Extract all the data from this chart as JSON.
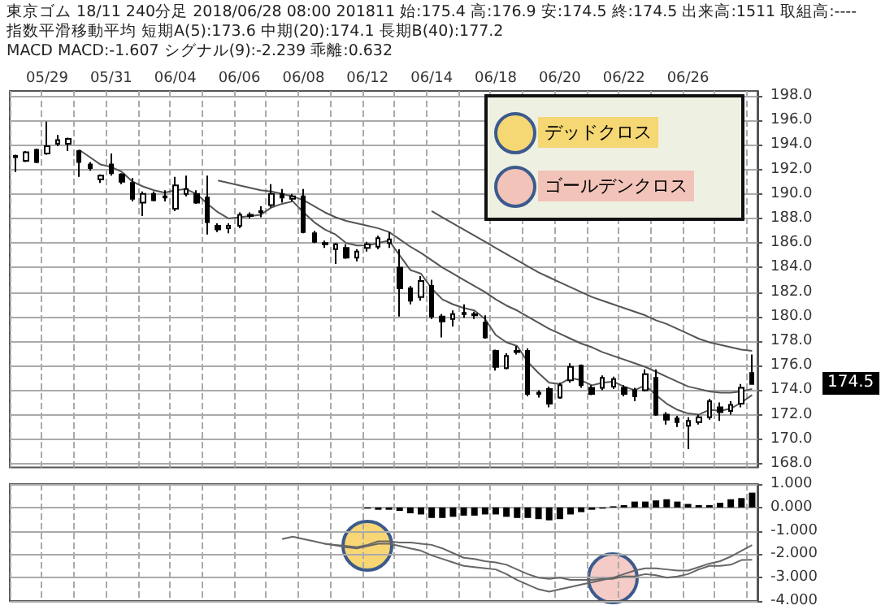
{
  "chart_data": [
    {
      "type": "candlestick",
      "title": "東京ゴム 18/11 240分足 2018/06/28 08:00 201811 始:175.4 高:176.9 安:174.5 終:174.5 出来高:1511 取組高:----",
      "subtitle": "指数平滑移動平均 短期A(5):173.6 中期(20):174.1 長期B(40):177.2",
      "categories": [
        null,
        null,
        null,
        "05/29",
        null,
        null,
        null,
        null,
        null,
        "05/31",
        null,
        null,
        null,
        null,
        null,
        "06/04",
        null,
        null,
        null,
        null,
        null,
        "06/06",
        null,
        null,
        null,
        null,
        null,
        "06/08",
        null,
        null,
        null,
        null,
        null,
        "06/12",
        null,
        null,
        null,
        null,
        null,
        "06/14",
        null,
        null,
        null,
        null,
        null,
        "06/18",
        null,
        null,
        null,
        null,
        null,
        "06/20",
        null,
        null,
        null,
        null,
        null,
        "06/22",
        null,
        null,
        null,
        null,
        null,
        "06/26",
        null,
        null,
        null,
        null,
        null,
        null
      ],
      "ohlc": [
        [
          193.1,
          193.2,
          191.8,
          193.0
        ],
        [
          192.7,
          193.5,
          192.6,
          193.4
        ],
        [
          193.6,
          193.7,
          192.5,
          192.6
        ],
        [
          193.3,
          195.9,
          193.2,
          193.9
        ],
        [
          194.1,
          194.8,
          193.9,
          194.4
        ],
        [
          194.1,
          194.6,
          193.5,
          194.5
        ],
        [
          193.5,
          193.6,
          191.4,
          192.6
        ],
        [
          192.4,
          192.6,
          191.9,
          192.1
        ],
        [
          191.2,
          191.6,
          190.9,
          191.5
        ],
        [
          192.4,
          193.3,
          191.5,
          191.7
        ],
        [
          191.6,
          191.7,
          190.8,
          191.0
        ],
        [
          190.9,
          191.3,
          189.4,
          189.6
        ],
        [
          189.3,
          190.2,
          188.2,
          190.0
        ],
        [
          190.0,
          190.2,
          189.4,
          189.5
        ],
        [
          189.8,
          190.3,
          189.4,
          189.7
        ],
        [
          188.8,
          191.4,
          188.6,
          190.7
        ],
        [
          190.0,
          191.5,
          189.8,
          190.4
        ],
        [
          190.0,
          190.3,
          189.2,
          189.3
        ],
        [
          189.7,
          191.5,
          186.7,
          187.7
        ],
        [
          187.4,
          187.6,
          186.9,
          187.1
        ],
        [
          187.2,
          187.6,
          186.8,
          187.4
        ],
        [
          187.4,
          188.5,
          187.2,
          188.3
        ],
        [
          188.3,
          188.5,
          188.0,
          188.2
        ],
        [
          188.6,
          189.0,
          188.1,
          188.5
        ],
        [
          189.1,
          190.8,
          188.9,
          190.0
        ],
        [
          190.0,
          190.4,
          189.3,
          189.7
        ],
        [
          189.6,
          190.0,
          189.4,
          189.8
        ],
        [
          189.8,
          190.4,
          186.8,
          186.9
        ],
        [
          186.8,
          187.0,
          186.0,
          186.1
        ],
        [
          186.0,
          186.2,
          185.6,
          185.9
        ],
        [
          185.5,
          186.0,
          184.3,
          185.9
        ],
        [
          185.6,
          185.9,
          184.7,
          184.8
        ],
        [
          184.8,
          185.5,
          184.5,
          185.3
        ],
        [
          185.6,
          186.1,
          185.3,
          185.9
        ],
        [
          185.7,
          186.6,
          185.5,
          186.4
        ],
        [
          186.0,
          186.9,
          185.6,
          186.3
        ],
        [
          184.0,
          185.5,
          180.0,
          182.3
        ],
        [
          182.3,
          182.5,
          181.0,
          181.3
        ],
        [
          181.6,
          183.3,
          181.3,
          182.9
        ],
        [
          182.5,
          183.0,
          179.8,
          180.0
        ],
        [
          180.0,
          180.2,
          178.3,
          179.6
        ],
        [
          179.8,
          180.5,
          179.2,
          180.2
        ],
        [
          180.3,
          181.0,
          179.9,
          180.2
        ],
        [
          180.2,
          180.4,
          179.8,
          180.1
        ],
        [
          179.5,
          180.1,
          178.2,
          178.3
        ],
        [
          177.2,
          177.3,
          175.6,
          175.9
        ],
        [
          175.8,
          177.0,
          175.7,
          176.8
        ],
        [
          177.2,
          177.6,
          176.9,
          177.1
        ],
        [
          177.2,
          177.4,
          173.5,
          173.7
        ],
        [
          173.8,
          174.0,
          173.4,
          173.7
        ],
        [
          174.1,
          174.3,
          172.6,
          172.9
        ],
        [
          173.4,
          174.6,
          173.3,
          174.4
        ],
        [
          174.8,
          176.2,
          174.6,
          175.9
        ],
        [
          176.0,
          176.1,
          174.2,
          174.4
        ],
        [
          174.2,
          174.4,
          173.6,
          173.7
        ],
        [
          174.2,
          175.2,
          174.0,
          175.0
        ],
        [
          174.3,
          175.1,
          174.1,
          174.9
        ],
        [
          174.2,
          174.4,
          173.5,
          173.7
        ],
        [
          174.0,
          174.2,
          173.1,
          173.5
        ],
        [
          174.0,
          175.7,
          173.9,
          175.3
        ],
        [
          175.0,
          175.7,
          171.9,
          172.0
        ],
        [
          172.0,
          172.2,
          171.2,
          171.6
        ],
        [
          171.7,
          171.9,
          171.0,
          171.4
        ],
        [
          171.1,
          171.8,
          169.2,
          171.5
        ],
        [
          171.4,
          172.0,
          171.2,
          171.8
        ],
        [
          171.8,
          173.3,
          171.6,
          173.1
        ],
        [
          172.6,
          173.0,
          171.5,
          172.2
        ],
        [
          172.3,
          173.1,
          172.0,
          172.8
        ],
        [
          172.9,
          174.5,
          172.6,
          174.2
        ],
        [
          175.4,
          176.9,
          174.5,
          174.5
        ]
      ],
      "series": [
        {
          "type": "line",
          "color": "#555555",
          "values": [
            null,
            null,
            null,
            null,
            null,
            null,
            193.6,
            193.0,
            192.4,
            192.2,
            191.8,
            191.0,
            190.6,
            190.3,
            190.1,
            190.3,
            190.4,
            190.0,
            189.2,
            188.5,
            188.0,
            188.1,
            188.2,
            188.3,
            188.9,
            189.2,
            189.4,
            188.5,
            187.7,
            187.1,
            186.7,
            186.0,
            185.8,
            185.8,
            186.0,
            186.2,
            185.0,
            183.8,
            183.5,
            182.3,
            181.4,
            181.0,
            180.7,
            180.5,
            179.8,
            178.5,
            177.9,
            177.6,
            176.3,
            175.4,
            174.6,
            174.5,
            175.0,
            174.8,
            174.4,
            174.6,
            174.7,
            174.3,
            174.0,
            174.4,
            173.6,
            172.9,
            172.4,
            172.1,
            172.0,
            172.4,
            172.3,
            172.5,
            173.0,
            173.6
          ]
        },
        {
          "type": "line",
          "color": "#555555",
          "values": [
            null,
            null,
            null,
            null,
            null,
            null,
            null,
            null,
            null,
            null,
            null,
            null,
            null,
            null,
            null,
            null,
            null,
            null,
            null,
            191.1,
            190.9,
            190.7,
            190.5,
            190.3,
            190.2,
            190.0,
            189.8,
            189.5,
            189.0,
            188.5,
            188.1,
            187.8,
            187.6,
            187.4,
            187.2,
            186.9,
            186.3,
            185.7,
            185.2,
            184.6,
            184.0,
            183.5,
            183.0,
            182.5,
            182.0,
            181.4,
            180.9,
            180.5,
            180.0,
            179.5,
            179.0,
            178.6,
            178.2,
            177.8,
            177.5,
            177.1,
            176.8,
            176.5,
            176.2,
            175.9,
            175.5,
            175.1,
            174.7,
            174.3,
            174.1,
            173.9,
            173.8,
            173.8,
            173.9,
            174.1
          ]
        },
        {
          "type": "line",
          "color": "#555555",
          "values": [
            null,
            null,
            null,
            null,
            null,
            null,
            null,
            null,
            null,
            null,
            null,
            null,
            null,
            null,
            null,
            null,
            null,
            null,
            null,
            null,
            null,
            null,
            null,
            null,
            null,
            null,
            null,
            null,
            null,
            null,
            null,
            null,
            null,
            null,
            null,
            null,
            null,
            null,
            null,
            188.6,
            188.1,
            187.6,
            187.1,
            186.6,
            186.1,
            185.6,
            185.1,
            184.6,
            184.1,
            183.6,
            183.2,
            182.8,
            182.4,
            182.0,
            181.6,
            181.3,
            181.0,
            180.7,
            180.4,
            180.1,
            179.7,
            179.4,
            179.0,
            178.6,
            178.2,
            177.9,
            177.7,
            177.5,
            177.3,
            177.2
          ]
        }
      ],
      "ylim": [
        167.7,
        198.4
      ],
      "yticks": [
        {
          "value": 168,
          "label": "168.0"
        },
        {
          "value": 170,
          "label": "170.0"
        },
        {
          "value": 172,
          "label": "172.0"
        },
        {
          "value": 174,
          "label": "174.0"
        },
        {
          "value": 176,
          "label": "176.0"
        },
        {
          "value": 178,
          "label": "178.0"
        },
        {
          "value": 180,
          "label": "180.0"
        },
        {
          "value": 182,
          "label": "182.0"
        },
        {
          "value": 184,
          "label": "184.0"
        },
        {
          "value": 186,
          "label": "186.0"
        },
        {
          "value": 188,
          "label": "188.0"
        },
        {
          "value": 190,
          "label": "190.0"
        },
        {
          "value": 192,
          "label": "192.0"
        },
        {
          "value": 194,
          "label": "194.0"
        },
        {
          "value": 196,
          "label": "196.0"
        },
        {
          "value": 198,
          "label": "198.0"
        }
      ],
      "grid": true,
      "annotations": [
        "MACD MACD:-1.607 シグナル(9):-2.239 乖離:0.632",
        "174.5"
      ]
    },
    {
      "type": "bar",
      "categories": [
        null,
        null,
        null,
        null,
        null,
        null,
        null,
        null,
        null,
        null,
        null,
        null,
        null,
        null,
        null,
        null,
        null,
        null,
        null,
        null,
        null,
        null,
        null,
        null,
        null,
        null,
        null,
        null,
        null,
        null,
        null,
        null,
        null,
        null,
        null,
        null,
        null,
        null,
        null,
        null,
        null,
        null,
        null,
        null,
        null,
        null,
        null,
        null,
        null,
        null,
        null,
        null,
        null,
        null,
        null,
        null,
        null,
        null,
        null,
        null,
        null,
        null,
        null,
        null,
        null,
        null,
        null,
        null,
        null,
        null
      ],
      "series": [
        {
          "type": "bar",
          "color": "#000000",
          "values": [
            null,
            null,
            null,
            null,
            null,
            null,
            null,
            null,
            null,
            null,
            null,
            null,
            null,
            null,
            null,
            null,
            null,
            null,
            null,
            null,
            null,
            null,
            null,
            null,
            null,
            null,
            null,
            null,
            null,
            null,
            null,
            null,
            null,
            -0.05,
            -0.1,
            -0.1,
            -0.15,
            -0.25,
            -0.3,
            -0.45,
            -0.45,
            -0.4,
            -0.35,
            -0.35,
            -0.3,
            -0.3,
            -0.4,
            -0.45,
            -0.45,
            -0.5,
            -0.55,
            -0.5,
            -0.3,
            -0.2,
            -0.1,
            -0.05,
            0.05,
            0.1,
            0.25,
            0.25,
            0.3,
            0.35,
            0.25,
            0.15,
            0.1,
            0.1,
            0.2,
            0.35,
            0.4,
            0.632
          ]
        },
        {
          "type": "line",
          "color": "#666666",
          "values": [
            null,
            null,
            null,
            null,
            null,
            null,
            null,
            null,
            null,
            null,
            null,
            null,
            null,
            null,
            null,
            null,
            null,
            null,
            null,
            null,
            null,
            null,
            null,
            null,
            null,
            -1.35,
            -1.25,
            -1.35,
            -1.45,
            -1.55,
            -1.62,
            -1.7,
            -1.75,
            -1.65,
            -1.55,
            -1.55,
            -1.65,
            -1.75,
            -1.85,
            -2.05,
            -2.2,
            -2.35,
            -2.5,
            -2.55,
            -2.6,
            -2.65,
            -2.85,
            -3.1,
            -3.3,
            -3.5,
            -3.6,
            -3.5,
            -3.4,
            -3.3,
            -3.2,
            -3.1,
            -3.0,
            -2.85,
            -2.7,
            -2.6,
            -2.6,
            -2.65,
            -2.7,
            -2.7,
            -2.55,
            -2.4,
            -2.3,
            -2.1,
            -1.85,
            -1.607
          ]
        },
        {
          "type": "line",
          "color": "#666666",
          "values": [
            null,
            null,
            null,
            null,
            null,
            null,
            null,
            null,
            null,
            null,
            null,
            null,
            null,
            null,
            null,
            null,
            null,
            null,
            null,
            null,
            null,
            null,
            null,
            null,
            null,
            null,
            null,
            null,
            null,
            -1.55,
            -1.6,
            -1.65,
            -1.7,
            -1.6,
            -1.45,
            -1.45,
            -1.5,
            -1.5,
            -1.55,
            -1.6,
            -1.75,
            -1.95,
            -2.15,
            -2.2,
            -2.3,
            -2.35,
            -2.45,
            -2.65,
            -2.85,
            -3.0,
            -3.05,
            -3.0,
            -3.1,
            -3.1,
            -3.1,
            -3.05,
            -3.05,
            -2.95,
            -2.95,
            -2.85,
            -2.9,
            -3.0,
            -2.95,
            -2.85,
            -2.65,
            -2.5,
            -2.5,
            -2.45,
            -2.25,
            -2.239
          ]
        }
      ],
      "ylim": [
        -4,
        1
      ],
      "yticks": [
        {
          "value": -4,
          "label": "-4.000"
        },
        {
          "value": -3,
          "label": "-3.000"
        },
        {
          "value": -2,
          "label": "-2.000"
        },
        {
          "value": -1,
          "label": "-1.000"
        },
        {
          "value": 0,
          "label": "0.000"
        },
        {
          "value": 1,
          "label": "1.000"
        }
      ],
      "grid": true,
      "tick_labels": "y",
      "annotations": [
        "デッドクロス",
        "ゴールデンクロス"
      ]
    }
  ]
}
